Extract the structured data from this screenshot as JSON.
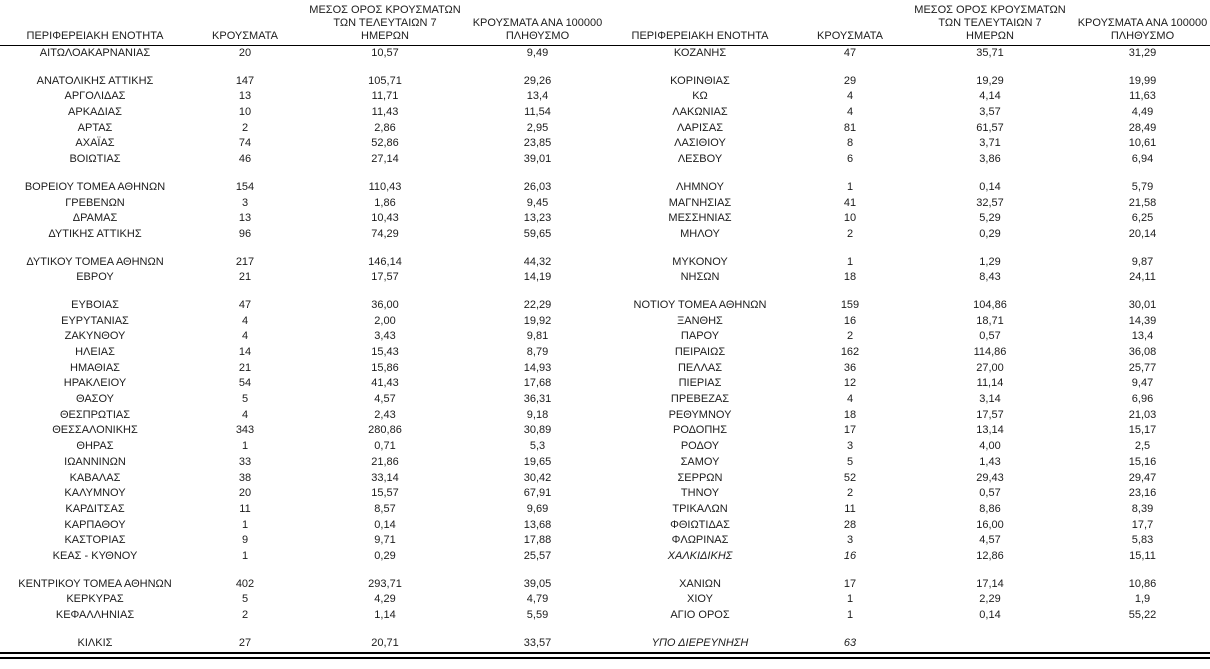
{
  "page": {
    "background": "#ffffff",
    "text_color": "#1c1c1c"
  },
  "headers": {
    "region": "ΠΕΡΙΦΕΡΕΙΑΚΗ ΕΝΟΤΗΤΑ",
    "cases": "ΚΡΟΥΣΜΑΤΑ",
    "avg7_line1": "ΜΕΣΟΣ ΟΡΟΣ ΚΡΟΥΣΜΑΤΩΝ",
    "avg7_line2": "ΤΩΝ ΤΕΛΕΥΤΑΙΩΝ 7",
    "avg7_line3": "ΗΜΕΡΩΝ",
    "per100k_line1": "ΚΡΟΥΣΜΑΤΑ ΑΝΑ 100000",
    "per100k_line2": "ΠΛΗΘΥΣΜΟ"
  },
  "left_table": {
    "groups": [
      [
        {
          "name": "ΑΙΤΩΛΟΑΚΑΡΝΑΝΙΑΣ",
          "cases": "20",
          "avg7": "10,57",
          "per100k": "9,49"
        }
      ],
      [
        {
          "name": "ΑΝΑΤΟΛΙΚΗΣ ΑΤΤΙΚΗΣ",
          "cases": "147",
          "avg7": "105,71",
          "per100k": "29,26"
        },
        {
          "name": "ΑΡΓΟΛΙΔΑΣ",
          "cases": "13",
          "avg7": "11,71",
          "per100k": "13,4"
        },
        {
          "name": "ΑΡΚΑΔΙΑΣ",
          "cases": "10",
          "avg7": "11,43",
          "per100k": "11,54"
        },
        {
          "name": "ΑΡΤΑΣ",
          "cases": "2",
          "avg7": "2,86",
          "per100k": "2,95"
        },
        {
          "name": "ΑΧΑΪΑΣ",
          "cases": "74",
          "avg7": "52,86",
          "per100k": "23,85"
        },
        {
          "name": "ΒΟΙΩΤΙΑΣ",
          "cases": "46",
          "avg7": "27,14",
          "per100k": "39,01"
        }
      ],
      [
        {
          "name": "ΒΟΡΕΙΟΥ ΤΟΜΕΑ ΑΘΗΝΩΝ",
          "cases": "154",
          "avg7": "110,43",
          "per100k": "26,03"
        },
        {
          "name": "ΓΡΕΒΕΝΩΝ",
          "cases": "3",
          "avg7": "1,86",
          "per100k": "9,45"
        },
        {
          "name": "ΔΡΑΜΑΣ",
          "cases": "13",
          "avg7": "10,43",
          "per100k": "13,23"
        },
        {
          "name": "ΔΥΤΙΚΗΣ ΑΤΤΙΚΗΣ",
          "cases": "96",
          "avg7": "74,29",
          "per100k": "59,65"
        }
      ],
      [
        {
          "name": "ΔΥΤΙΚΟΥ ΤΟΜΕΑ ΑΘΗΝΩΝ",
          "cases": "217",
          "avg7": "146,14",
          "per100k": "44,32"
        },
        {
          "name": "ΕΒΡΟΥ",
          "cases": "21",
          "avg7": "17,57",
          "per100k": "14,19"
        }
      ],
      [
        {
          "name": "ΕΥΒΟΙΑΣ",
          "cases": "47",
          "avg7": "36,00",
          "per100k": "22,29"
        },
        {
          "name": "ΕΥΡΥΤΑΝΙΑΣ",
          "cases": "4",
          "avg7": "2,00",
          "per100k": "19,92"
        },
        {
          "name": "ΖΑΚΥΝΘΟΥ",
          "cases": "4",
          "avg7": "3,43",
          "per100k": "9,81"
        },
        {
          "name": "ΗΛΕΙΑΣ",
          "cases": "14",
          "avg7": "15,43",
          "per100k": "8,79"
        },
        {
          "name": "ΗΜΑΘΙΑΣ",
          "cases": "21",
          "avg7": "15,86",
          "per100k": "14,93"
        },
        {
          "name": "ΗΡΑΚΛΕΙΟΥ",
          "cases": "54",
          "avg7": "41,43",
          "per100k": "17,68"
        },
        {
          "name": "ΘΑΣΟΥ",
          "cases": "5",
          "avg7": "4,57",
          "per100k": "36,31"
        },
        {
          "name": "ΘΕΣΠΡΩΤΙΑΣ",
          "cases": "4",
          "avg7": "2,43",
          "per100k": "9,18"
        },
        {
          "name": "ΘΕΣΣΑΛΟΝΙΚΗΣ",
          "cases": "343",
          "avg7": "280,86",
          "per100k": "30,89"
        },
        {
          "name": "ΘΗΡΑΣ",
          "cases": "1",
          "avg7": "0,71",
          "per100k": "5,3"
        },
        {
          "name": "ΙΩΑΝΝΙΝΩΝ",
          "cases": "33",
          "avg7": "21,86",
          "per100k": "19,65"
        },
        {
          "name": "ΚΑΒΑΛΑΣ",
          "cases": "38",
          "avg7": "33,14",
          "per100k": "30,42"
        },
        {
          "name": "ΚΑΛΥΜΝΟΥ",
          "cases": "20",
          "avg7": "15,57",
          "per100k": "67,91"
        },
        {
          "name": "ΚΑΡΔΙΤΣΑΣ",
          "cases": "11",
          "avg7": "8,57",
          "per100k": "9,69"
        },
        {
          "name": "ΚΑΡΠΑΘΟΥ",
          "cases": "1",
          "avg7": "0,14",
          "per100k": "13,68"
        },
        {
          "name": "ΚΑΣΤΟΡΙΑΣ",
          "cases": "9",
          "avg7": "9,71",
          "per100k": "17,88"
        },
        {
          "name": "ΚΕΑΣ - ΚΥΘΝΟΥ",
          "cases": "1",
          "avg7": "0,29",
          "per100k": "25,57"
        }
      ],
      [
        {
          "name": "ΚΕΝΤΡΙΚΟΥ ΤΟΜΕΑ ΑΘΗΝΩΝ",
          "cases": "402",
          "avg7": "293,71",
          "per100k": "39,05"
        },
        {
          "name": "ΚΕΡΚΥΡΑΣ",
          "cases": "5",
          "avg7": "4,29",
          "per100k": "4,79"
        },
        {
          "name": "ΚΕΦΑΛΛΗΝΙΑΣ",
          "cases": "2",
          "avg7": "1,14",
          "per100k": "5,59"
        }
      ],
      [
        {
          "name": "ΚΙΛΚΙΣ",
          "cases": "27",
          "avg7": "20,71",
          "per100k": "33,57"
        }
      ]
    ]
  },
  "right_table": {
    "groups": [
      [
        {
          "name": "ΚΟΖΑΝΗΣ",
          "cases": "47",
          "avg7": "35,71",
          "per100k": "31,29"
        }
      ],
      [
        {
          "name": "ΚΟΡΙΝΘΙΑΣ",
          "cases": "29",
          "avg7": "19,29",
          "per100k": "19,99"
        },
        {
          "name": "ΚΩ",
          "cases": "4",
          "avg7": "4,14",
          "per100k": "11,63"
        },
        {
          "name": "ΛΑΚΩΝΙΑΣ",
          "cases": "4",
          "avg7": "3,57",
          "per100k": "4,49"
        },
        {
          "name": "ΛΑΡΙΣΑΣ",
          "cases": "81",
          "avg7": "61,57",
          "per100k": "28,49"
        },
        {
          "name": "ΛΑΣΙΘΙΟΥ",
          "cases": "8",
          "avg7": "3,71",
          "per100k": "10,61"
        },
        {
          "name": "ΛΕΣΒΟΥ",
          "cases": "6",
          "avg7": "3,86",
          "per100k": "6,94"
        }
      ],
      [
        {
          "name": "ΛΗΜΝΟΥ",
          "cases": "1",
          "avg7": "0,14",
          "per100k": "5,79"
        },
        {
          "name": "ΜΑΓΝΗΣΙΑΣ",
          "cases": "41",
          "avg7": "32,57",
          "per100k": "21,58"
        },
        {
          "name": "ΜΕΣΣΗΝΙΑΣ",
          "cases": "10",
          "avg7": "5,29",
          "per100k": "6,25"
        },
        {
          "name": "ΜΗΛΟΥ",
          "cases": "2",
          "avg7": "0,29",
          "per100k": "20,14"
        }
      ],
      [
        {
          "name": "ΜΥΚΟΝΟΥ",
          "cases": "1",
          "avg7": "1,29",
          "per100k": "9,87"
        },
        {
          "name": "ΝΗΣΩΝ",
          "cases": "18",
          "avg7": "8,43",
          "per100k": "24,11"
        }
      ],
      [
        {
          "name": "ΝΟΤΙΟΥ ΤΟΜΕΑ ΑΘΗΝΩΝ",
          "cases": "159",
          "avg7": "104,86",
          "per100k": "30,01"
        },
        {
          "name": "ΞΑΝΘΗΣ",
          "cases": "16",
          "avg7": "18,71",
          "per100k": "14,39"
        },
        {
          "name": "ΠΑΡΟΥ",
          "cases": "2",
          "avg7": "0,57",
          "per100k": "13,4"
        },
        {
          "name": "ΠΕΙΡΑΙΩΣ",
          "cases": "162",
          "avg7": "114,86",
          "per100k": "36,08"
        },
        {
          "name": "ΠΕΛΛΑΣ",
          "cases": "36",
          "avg7": "27,00",
          "per100k": "25,77"
        },
        {
          "name": "ΠΙΕΡΙΑΣ",
          "cases": "12",
          "avg7": "11,14",
          "per100k": "9,47"
        },
        {
          "name": "ΠΡΕΒΕΖΑΣ",
          "cases": "4",
          "avg7": "3,14",
          "per100k": "6,96"
        },
        {
          "name": "ΡΕΘΥΜΝΟΥ",
          "cases": "18",
          "avg7": "17,57",
          "per100k": "21,03"
        },
        {
          "name": "ΡΟΔΟΠΗΣ",
          "cases": "17",
          "avg7": "13,14",
          "per100k": "15,17"
        },
        {
          "name": "ΡΟΔΟΥ",
          "cases": "3",
          "avg7": "4,00",
          "per100k": "2,5"
        },
        {
          "name": "ΣΑΜΟΥ",
          "cases": "5",
          "avg7": "1,43",
          "per100k": "15,16"
        },
        {
          "name": "ΣΕΡΡΩΝ",
          "cases": "52",
          "avg7": "29,43",
          "per100k": "29,47"
        },
        {
          "name": "ΤΗΝΟΥ",
          "cases": "2",
          "avg7": "0,57",
          "per100k": "23,16"
        },
        {
          "name": "ΤΡΙΚΑΛΩΝ",
          "cases": "11",
          "avg7": "8,86",
          "per100k": "8,39"
        },
        {
          "name": "ΦΘΙΩΤΙΔΑΣ",
          "cases": "28",
          "avg7": "16,00",
          "per100k": "17,7"
        },
        {
          "name": "ΦΛΩΡΙΝΑΣ",
          "cases": "3",
          "avg7": "4,57",
          "per100k": "5,83"
        },
        {
          "name": "ΧΑΛΚΙΔΙΚΗΣ",
          "cases": "16",
          "avg7": "12,86",
          "per100k": "15,11",
          "italic": true
        }
      ],
      [
        {
          "name": "ΧΑΝΙΩΝ",
          "cases": "17",
          "avg7": "17,14",
          "per100k": "10,86"
        },
        {
          "name": "ΧΙΟΥ",
          "cases": "1",
          "avg7": "2,29",
          "per100k": "1,9"
        },
        {
          "name": "ΑΓΙΟ ΟΡΟΣ",
          "cases": "1",
          "avg7": "0,14",
          "per100k": "55,22"
        }
      ],
      [
        {
          "name": "ΥΠΟ ΔΙΕΡΕΥΝΗΣΗ",
          "cases": "63",
          "avg7": "",
          "per100k": "",
          "italic": true
        }
      ]
    ]
  }
}
